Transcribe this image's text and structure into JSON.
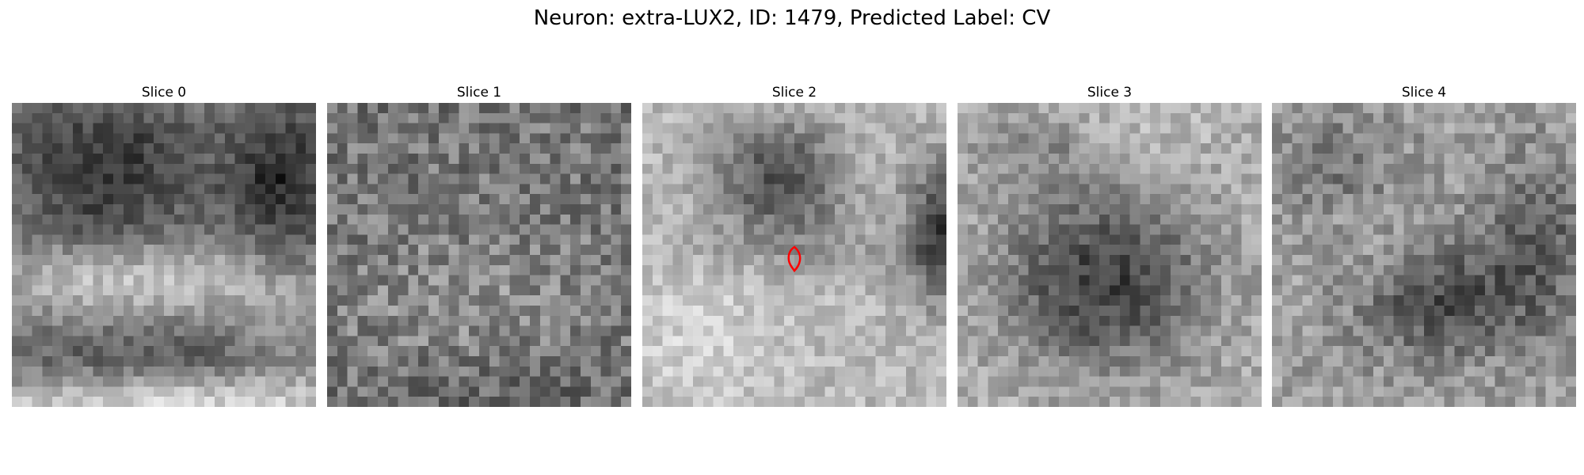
{
  "figure": {
    "title": "Neuron: extra-LUX2, ID: 1479, Predicted Label: CV"
  },
  "panels": [
    {
      "title": "Slice 0",
      "pattern": "dark-blobs-top-bright-band-middle"
    },
    {
      "title": "Slice 1",
      "pattern": "noisy-uniform-mid-gray"
    },
    {
      "title": "Slice 2",
      "pattern": "dark-blob-top-center-and-right-edge-light-background",
      "marker": true
    },
    {
      "title": "Slice 3",
      "pattern": "large-dark-blob-center-light-surround"
    },
    {
      "title": "Slice 4",
      "pattern": "dark-blob-right-center-light-surround"
    }
  ],
  "marker": {
    "shape": "ellipse-outline",
    "color": "#ff0000"
  },
  "colormap": "gray"
}
